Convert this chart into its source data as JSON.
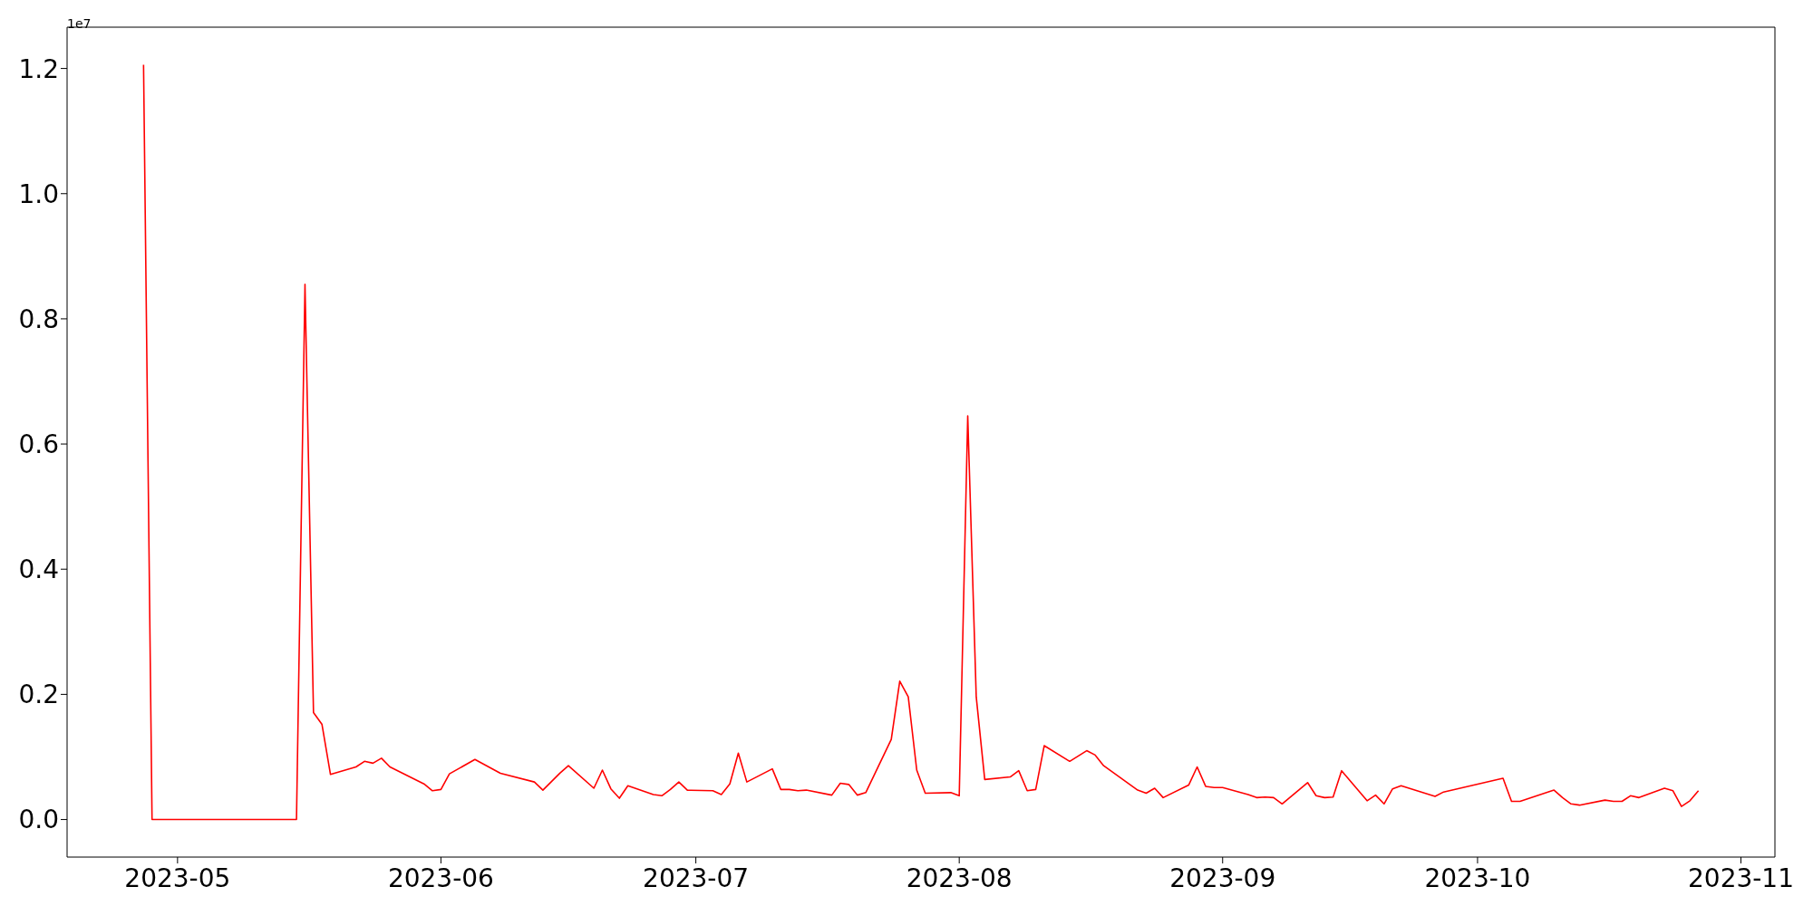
{
  "chart_data": {
    "type": "line",
    "x": [
      "2023-04-27",
      "2023-04-28",
      "2023-05-15",
      "2023-05-16",
      "2023-05-17",
      "2023-05-18",
      "2023-05-19",
      "2023-05-22",
      "2023-05-23",
      "2023-05-24",
      "2023-05-25",
      "2023-05-26",
      "2023-05-30",
      "2023-05-31",
      "2023-06-01",
      "2023-06-02",
      "2023-06-05",
      "2023-06-08",
      "2023-06-12",
      "2023-06-13",
      "2023-06-15",
      "2023-06-16",
      "2023-06-19",
      "2023-06-20",
      "2023-06-21",
      "2023-06-22",
      "2023-06-23",
      "2023-06-26",
      "2023-06-27",
      "2023-06-28",
      "2023-06-29",
      "2023-06-30",
      "2023-07-03",
      "2023-07-04",
      "2023-07-05",
      "2023-07-06",
      "2023-07-07",
      "2023-07-10",
      "2023-07-11",
      "2023-07-12",
      "2023-07-13",
      "2023-07-14",
      "2023-07-17",
      "2023-07-18",
      "2023-07-19",
      "2023-07-20",
      "2023-07-21",
      "2023-07-24",
      "2023-07-25",
      "2023-07-26",
      "2023-07-27",
      "2023-07-28",
      "2023-07-31",
      "2023-08-01",
      "2023-08-02",
      "2023-08-03",
      "2023-08-04",
      "2023-08-07",
      "2023-08-08",
      "2023-08-09",
      "2023-08-10",
      "2023-08-11",
      "2023-08-14",
      "2023-08-16",
      "2023-08-17",
      "2023-08-18",
      "2023-08-22",
      "2023-08-23",
      "2023-08-24",
      "2023-08-25",
      "2023-08-28",
      "2023-08-29",
      "2023-08-30",
      "2023-08-31",
      "2023-09-01",
      "2023-09-04",
      "2023-09-05",
      "2023-09-06",
      "2023-09-07",
      "2023-09-08",
      "2023-09-11",
      "2023-09-12",
      "2023-09-13",
      "2023-09-14",
      "2023-09-15",
      "2023-09-18",
      "2023-09-19",
      "2023-09-20",
      "2023-09-21",
      "2023-09-22",
      "2023-09-26",
      "2023-09-27",
      "2023-10-04",
      "2023-10-05",
      "2023-10-06",
      "2023-10-10",
      "2023-10-11",
      "2023-10-12",
      "2023-10-13",
      "2023-10-16",
      "2023-10-17",
      "2023-10-18",
      "2023-10-19",
      "2023-10-20",
      "2023-10-23",
      "2023-10-24",
      "2023-10-25",
      "2023-10-26",
      "2023-10-27"
    ],
    "series": [
      {
        "color": "#ff0000",
        "values": [
          1.206,
          0,
          0,
          0.855,
          0.171,
          0.152,
          0.072,
          0.084,
          0.093,
          0.09,
          0.098,
          0.084,
          0.057,
          0.046,
          0.048,
          0.073,
          0.096,
          0.074,
          0.06,
          0.047,
          0.074,
          0.086,
          0.05,
          0.079,
          0.049,
          0.034,
          0.054,
          0.04,
          0.038,
          0.048,
          0.06,
          0.047,
          0.046,
          0.04,
          0.057,
          0.106,
          0.06,
          0.081,
          0.048,
          0.048,
          0.046,
          0.047,
          0.039,
          0.058,
          0.056,
          0.039,
          0.043,
          0.128,
          0.221,
          0.196,
          0.079,
          0.042,
          0.043,
          0.038,
          0.645,
          0.196,
          0.064,
          0.068,
          0.078,
          0.046,
          0.048,
          0.118,
          0.093,
          0.11,
          0.103,
          0.086,
          0.047,
          0.042,
          0.05,
          0.035,
          0.055,
          0.084,
          0.053,
          0.051,
          0.051,
          0.04,
          0.035,
          0.036,
          0.035,
          0.025,
          0.059,
          0.038,
          0.035,
          0.036,
          0.078,
          0.03,
          0.039,
          0.025,
          0.049,
          0.054,
          0.037,
          0.044,
          0.066,
          0.029,
          0.029,
          0.047,
          0.035,
          0.025,
          0.023,
          0.031,
          0.029,
          0.029,
          0.038,
          0.035,
          0.05,
          0.046,
          0.021,
          0.03,
          0.046
        ]
      }
    ],
    "xlim": [
      "2023-04-18",
      "2023-11-05"
    ],
    "xticks": [
      "2023-05",
      "2023-06",
      "2023-07",
      "2023-08",
      "2023-09",
      "2023-10",
      "2023-11"
    ],
    "ylim": [
      -0.06,
      1.266
    ],
    "yticks": [
      {
        "value": 0,
        "label": "0.0"
      },
      0.2,
      0.4,
      0.6,
      0.8,
      {
        "value": 1,
        "label": "1.0"
      },
      1.2
    ],
    "annotations": [
      "1e7"
    ]
  }
}
